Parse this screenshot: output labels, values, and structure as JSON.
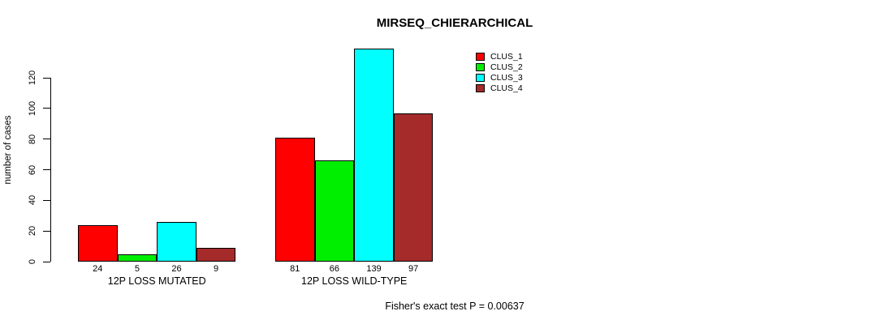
{
  "chart_data": {
    "type": "bar",
    "title": "MIRSEQ_CHIERARCHICAL",
    "ylabel": "number of cases",
    "xlabel": "",
    "categories": [
      "12P LOSS MUTATED",
      "12P LOSS WILD-TYPE"
    ],
    "series": [
      {
        "name": "CLUS_1",
        "color": "#FF0000",
        "values": [
          24,
          81
        ]
      },
      {
        "name": "CLUS_2",
        "color": "#00EE00",
        "values": [
          5,
          66
        ]
      },
      {
        "name": "CLUS_3",
        "color": "#00FFFF",
        "values": [
          26,
          139
        ]
      },
      {
        "name": "CLUS_4",
        "color": "#A52A2A",
        "values": [
          9,
          97
        ]
      }
    ],
    "yticks": [
      0,
      20,
      40,
      60,
      80,
      100,
      120
    ],
    "ylim": [
      0,
      139
    ],
    "bar_value_labels": [
      [
        24,
        5,
        26,
        9
      ],
      [
        81,
        66,
        139,
        97
      ]
    ],
    "annotation": "Fisher's exact test P = 0.00637",
    "legend_position": "top-right",
    "grid": false,
    "background": "#ffffff",
    "text_color": "#000000"
  }
}
